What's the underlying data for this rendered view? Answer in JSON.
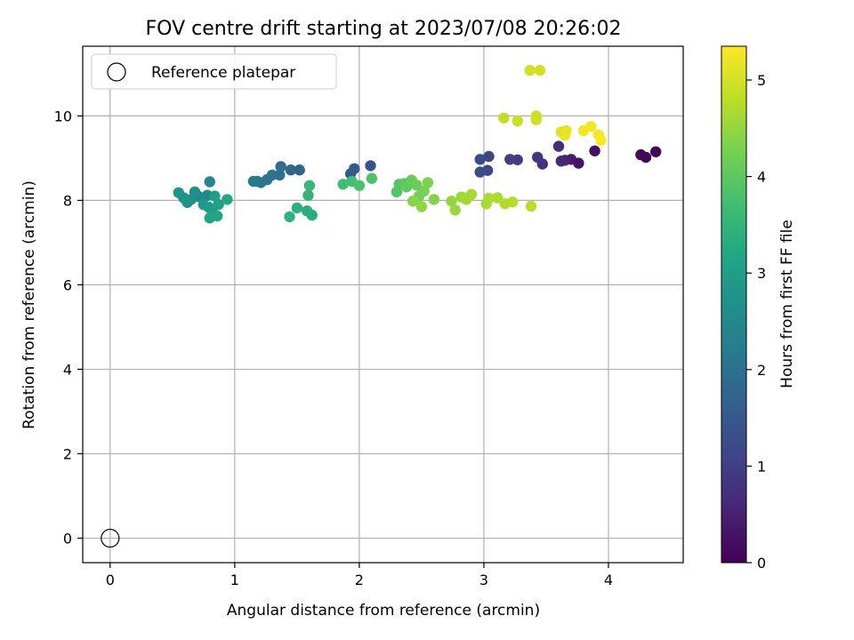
{
  "chart_data": {
    "type": "scatter",
    "title": "FOV centre drift starting at 2023/07/08 20:26:02",
    "xlabel": "Angular distance from reference (arcmin)",
    "ylabel": "Rotation from reference (arcmin)",
    "xlim": [
      -0.22,
      4.6
    ],
    "ylim": [
      -0.58,
      11.65
    ],
    "xticks": [
      0,
      1,
      2,
      3,
      4
    ],
    "yticks": [
      0,
      2,
      4,
      6,
      8,
      10
    ],
    "grid": true,
    "legend": {
      "position": "upper-left",
      "entries": [
        "Reference platepar"
      ]
    },
    "colorbar": {
      "label": "Hours from first FF file",
      "colormap": "viridis",
      "range": [
        0,
        5.35
      ],
      "ticks": [
        0,
        1,
        2,
        3,
        4,
        5
      ]
    },
    "reference_point": {
      "x": 0,
      "y": 0,
      "label": "Reference platepar"
    },
    "points": [
      [
        4.38,
        9.15,
        0.05
      ],
      [
        4.3,
        9.02,
        0.08
      ],
      [
        4.26,
        9.08,
        0.12
      ],
      [
        3.89,
        9.17,
        0.2
      ],
      [
        3.76,
        8.88,
        0.3
      ],
      [
        3.7,
        8.97,
        0.4
      ],
      [
        3.65,
        8.95,
        0.5
      ],
      [
        3.62,
        8.93,
        0.6
      ],
      [
        3.6,
        9.28,
        0.7
      ],
      [
        3.47,
        8.86,
        0.8
      ],
      [
        3.43,
        9.02,
        0.85
      ],
      [
        3.27,
        8.96,
        0.95
      ],
      [
        3.21,
        8.97,
        1.05
      ],
      [
        3.04,
        9.04,
        1.1
      ],
      [
        3.03,
        8.71,
        1.15
      ],
      [
        2.97,
        8.97,
        1.2
      ],
      [
        2.97,
        8.67,
        1.25
      ],
      [
        2.09,
        8.82,
        1.4
      ],
      [
        1.96,
        8.75,
        1.5
      ],
      [
        1.93,
        8.63,
        1.55
      ],
      [
        1.52,
        8.72,
        1.7
      ],
      [
        1.45,
        8.72,
        1.8
      ],
      [
        1.37,
        8.8,
        1.9
      ],
      [
        1.36,
        8.6,
        1.95
      ],
      [
        1.3,
        8.6,
        2.0
      ],
      [
        1.26,
        8.49,
        2.05
      ],
      [
        1.21,
        8.42,
        2.1
      ],
      [
        1.18,
        8.45,
        2.15
      ],
      [
        1.15,
        8.45,
        2.2
      ],
      [
        0.8,
        8.44,
        2.4
      ],
      [
        0.78,
        8.12,
        2.5
      ],
      [
        0.71,
        8.09,
        2.55
      ],
      [
        0.68,
        8.2,
        2.6
      ],
      [
        0.65,
        8.02,
        2.65
      ],
      [
        0.62,
        7.95,
        2.7
      ],
      [
        0.59,
        8.06,
        2.75
      ],
      [
        0.55,
        8.18,
        2.8
      ],
      [
        0.75,
        7.9,
        2.85
      ],
      [
        0.79,
        7.84,
        2.9
      ],
      [
        0.82,
        7.72,
        2.95
      ],
      [
        0.84,
        8.1,
        3.0
      ],
      [
        0.87,
        7.9,
        3.05
      ],
      [
        0.8,
        7.58,
        3.1
      ],
      [
        0.86,
        7.63,
        3.15
      ],
      [
        0.94,
        8.02,
        3.2
      ],
      [
        1.62,
        7.65,
        3.3
      ],
      [
        1.58,
        7.75,
        3.35
      ],
      [
        1.5,
        7.82,
        3.4
      ],
      [
        1.44,
        7.61,
        3.45
      ],
      [
        1.59,
        8.12,
        3.5
      ],
      [
        1.6,
        8.35,
        3.55
      ],
      [
        1.87,
        8.38,
        3.7
      ],
      [
        1.94,
        8.45,
        3.75
      ],
      [
        2.0,
        8.35,
        3.8
      ],
      [
        2.1,
        8.52,
        3.85
      ],
      [
        2.3,
        8.2,
        3.9
      ],
      [
        2.32,
        8.38,
        3.95
      ],
      [
        2.36,
        8.4,
        4.0
      ],
      [
        2.38,
        8.32,
        4.05
      ],
      [
        2.42,
        8.48,
        4.1
      ],
      [
        2.46,
        8.36,
        4.15
      ],
      [
        2.48,
        8.1,
        4.2
      ],
      [
        2.52,
        8.22,
        4.25
      ],
      [
        2.55,
        8.42,
        4.3
      ],
      [
        2.6,
        8.02,
        4.35
      ],
      [
        2.43,
        7.98,
        4.4
      ],
      [
        2.5,
        7.85,
        4.45
      ],
      [
        2.74,
        7.98,
        4.5
      ],
      [
        2.77,
        7.77,
        4.52
      ],
      [
        2.82,
        8.08,
        4.55
      ],
      [
        2.86,
        8.02,
        4.6
      ],
      [
        2.9,
        8.14,
        4.62
      ],
      [
        3.02,
        7.92,
        4.65
      ],
      [
        3.04,
        8.05,
        4.68
      ],
      [
        3.11,
        8.06,
        4.7
      ],
      [
        3.17,
        7.92,
        4.72
      ],
      [
        3.23,
        7.96,
        4.75
      ],
      [
        3.38,
        7.86,
        4.78
      ],
      [
        3.16,
        9.95,
        4.85
      ],
      [
        3.27,
        9.88,
        4.9
      ],
      [
        3.42,
        9.91,
        4.93
      ],
      [
        3.42,
        10.0,
        4.95
      ],
      [
        3.37,
        11.08,
        4.98
      ],
      [
        3.45,
        11.08,
        5.0
      ],
      [
        3.62,
        9.62,
        5.1
      ],
      [
        3.66,
        9.65,
        5.15
      ],
      [
        3.65,
        9.54,
        5.2
      ],
      [
        3.8,
        9.65,
        5.25
      ],
      [
        3.86,
        9.75,
        5.28
      ],
      [
        3.92,
        9.55,
        5.3
      ],
      [
        3.94,
        9.42,
        5.33
      ]
    ]
  }
}
